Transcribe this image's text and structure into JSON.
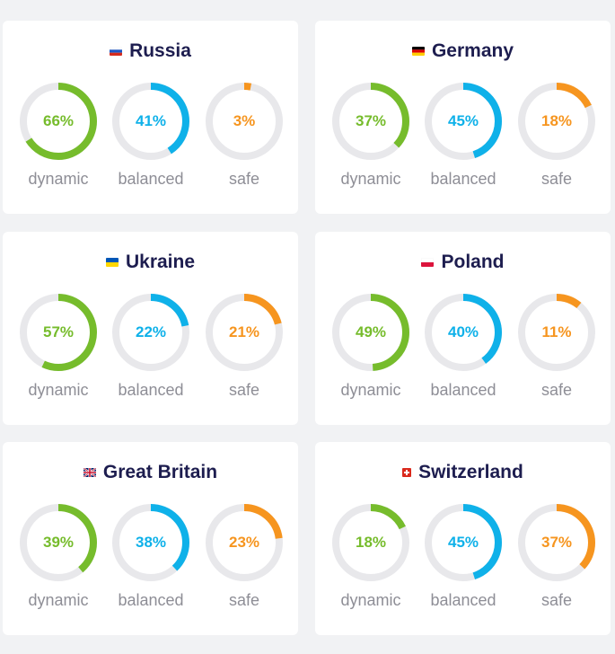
{
  "colors": {
    "dynamic": "#76bc2c",
    "balanced": "#0fb1e9",
    "safe": "#f6951f",
    "track": "#e8e8eb",
    "title": "#1d1d4f",
    "label": "#8e8e96"
  },
  "cards": [
    {
      "country": "Russia",
      "flag": "flag-russia-icon",
      "gauges": [
        {
          "type": "dynamic",
          "value": 66,
          "text": "66%",
          "label": "dynamic"
        },
        {
          "type": "balanced",
          "value": 41,
          "text": "41%",
          "label": "balanced"
        },
        {
          "type": "safe",
          "value": 3,
          "text": "3%",
          "label": "safe"
        }
      ]
    },
    {
      "country": "Germany",
      "flag": "flag-germany-icon",
      "gauges": [
        {
          "type": "dynamic",
          "value": 37,
          "text": "37%",
          "label": "dynamic"
        },
        {
          "type": "balanced",
          "value": 45,
          "text": "45%",
          "label": "balanced"
        },
        {
          "type": "safe",
          "value": 18,
          "text": "18%",
          "label": "safe"
        }
      ]
    },
    {
      "country": "Ukraine",
      "flag": "flag-ukraine-icon",
      "gauges": [
        {
          "type": "dynamic",
          "value": 57,
          "text": "57%",
          "label": "dynamic"
        },
        {
          "type": "balanced",
          "value": 22,
          "text": "22%",
          "label": "balanced"
        },
        {
          "type": "safe",
          "value": 21,
          "text": "21%",
          "label": "safe"
        }
      ]
    },
    {
      "country": "Poland",
      "flag": "flag-poland-icon",
      "gauges": [
        {
          "type": "dynamic",
          "value": 49,
          "text": "49%",
          "label": "dynamic"
        },
        {
          "type": "balanced",
          "value": 40,
          "text": "40%",
          "label": "balanced"
        },
        {
          "type": "safe",
          "value": 11,
          "text": "11%",
          "label": "safe"
        }
      ]
    },
    {
      "country": "Great Britain",
      "flag": "flag-great-britain-icon",
      "gauges": [
        {
          "type": "dynamic",
          "value": 39,
          "text": "39%",
          "label": "dynamic"
        },
        {
          "type": "balanced",
          "value": 38,
          "text": "38%",
          "label": "balanced"
        },
        {
          "type": "safe",
          "value": 23,
          "text": "23%",
          "label": "safe"
        }
      ]
    },
    {
      "country": "Switzerland",
      "flag": "flag-switzerland-icon",
      "gauges": [
        {
          "type": "dynamic",
          "value": 18,
          "text": "18%",
          "label": "dynamic"
        },
        {
          "type": "balanced",
          "value": 45,
          "text": "45%",
          "label": "balanced"
        },
        {
          "type": "safe",
          "value": 37,
          "text": "37%",
          "label": "safe"
        }
      ]
    }
  ]
}
